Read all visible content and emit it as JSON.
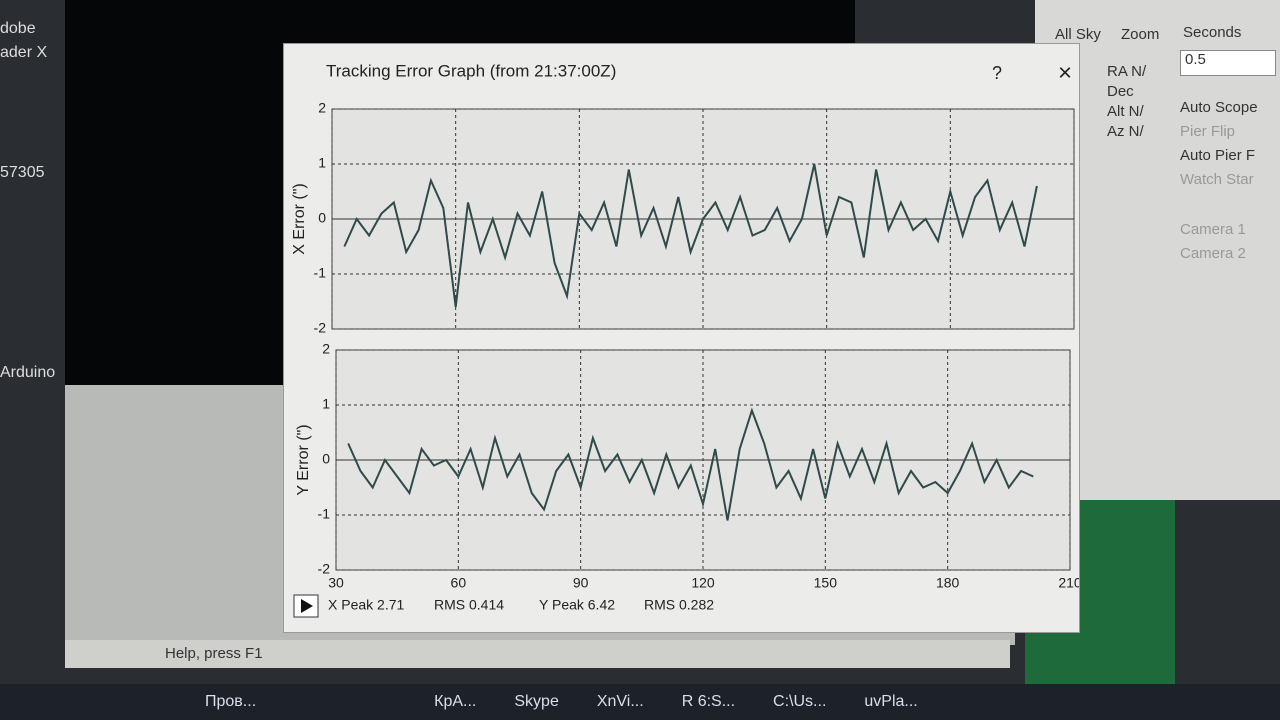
{
  "window": {
    "title": "Tracking Error Graph (from 21:37:00Z)",
    "help": "?",
    "close": "×"
  },
  "stats": {
    "x_peak": "X Peak 2.71",
    "x_rms": "RMS 0.414",
    "y_peak": "Y Peak 6.42",
    "y_rms": "RMS 0.282"
  },
  "chart_data": [
    {
      "type": "line",
      "ylabel": "X Error (\")",
      "x": [
        33,
        36,
        39,
        42,
        45,
        48,
        51,
        54,
        57,
        60,
        63,
        66,
        69,
        72,
        75,
        78,
        81,
        84,
        87,
        90,
        93,
        96,
        99,
        102,
        105,
        108,
        111,
        114,
        117,
        120,
        123,
        126,
        129,
        132,
        135,
        138,
        141,
        144,
        147,
        150,
        153,
        156,
        159,
        162,
        165,
        168,
        171,
        174,
        177,
        180,
        183,
        186,
        189,
        192,
        195,
        198,
        201
      ],
      "series": [
        {
          "color": "#2f4a4a",
          "values": [
            -0.5,
            0.0,
            -0.3,
            0.1,
            0.3,
            -0.6,
            -0.2,
            0.7,
            0.2,
            -1.6,
            0.3,
            -0.6,
            0.0,
            -0.7,
            0.1,
            -0.3,
            0.5,
            -0.8,
            -1.4,
            0.1,
            -0.2,
            0.3,
            -0.5,
            0.9,
            -0.3,
            0.2,
            -0.5,
            0.4,
            -0.6,
            0.0,
            0.3,
            -0.2,
            0.4,
            -0.3,
            -0.2,
            0.2,
            -0.4,
            0.0,
            1.0,
            -0.3,
            0.4,
            0.3,
            -0.7,
            0.9,
            -0.2,
            0.3,
            -0.2,
            0.0,
            -0.4,
            0.5,
            -0.3,
            0.4,
            0.7,
            -0.2,
            0.3,
            -0.5,
            0.6
          ]
        }
      ],
      "xlim": [
        30,
        210
      ],
      "ylim": [
        -2,
        2
      ],
      "xticks": [
        30,
        60,
        90,
        120,
        150,
        180,
        210
      ],
      "yticks": [
        -2,
        -1,
        0,
        1,
        2
      ],
      "grid": true
    },
    {
      "type": "line",
      "ylabel": "Y Error (\")",
      "x": [
        33,
        36,
        39,
        42,
        45,
        48,
        51,
        54,
        57,
        60,
        63,
        66,
        69,
        72,
        75,
        78,
        81,
        84,
        87,
        90,
        93,
        96,
        99,
        102,
        105,
        108,
        111,
        114,
        117,
        120,
        123,
        126,
        129,
        132,
        135,
        138,
        141,
        144,
        147,
        150,
        153,
        156,
        159,
        162,
        165,
        168,
        171,
        174,
        177,
        180,
        183,
        186,
        189,
        192,
        195,
        198,
        201
      ],
      "series": [
        {
          "color": "#2f4a4a",
          "values": [
            0.3,
            -0.2,
            -0.5,
            0.0,
            -0.3,
            -0.6,
            0.2,
            -0.1,
            0.0,
            -0.3,
            0.2,
            -0.5,
            0.4,
            -0.3,
            0.1,
            -0.6,
            -0.9,
            -0.2,
            0.1,
            -0.5,
            0.4,
            -0.2,
            0.1,
            -0.4,
            0.0,
            -0.6,
            0.1,
            -0.5,
            -0.1,
            -0.8,
            0.2,
            -1.1,
            0.2,
            0.9,
            0.3,
            -0.5,
            -0.2,
            -0.7,
            0.2,
            -0.7,
            0.3,
            -0.3,
            0.2,
            -0.4,
            0.3,
            -0.6,
            -0.2,
            -0.5,
            -0.4,
            -0.6,
            -0.2,
            0.3,
            -0.4,
            0.0,
            -0.5,
            -0.2,
            -0.3
          ]
        }
      ],
      "xlim": [
        30,
        210
      ],
      "ylim": [
        -2,
        2
      ],
      "xticks": [
        30,
        60,
        90,
        120,
        150,
        180,
        210
      ],
      "yticks": [
        -2,
        -1,
        0,
        1,
        2
      ],
      "grid": true
    }
  ],
  "right_panel": {
    "tabs": [
      "All Sky",
      "Zoom"
    ],
    "coords": [
      "RA  N/",
      "Dec",
      "Alt  N/",
      "Az  N/"
    ],
    "seconds_label": "Seconds",
    "seconds_value": "0.5",
    "options": [
      "Auto Scope",
      "Pier Flip",
      "Auto Pier F",
      "Watch Star",
      "Camera 1",
      "Camera 2"
    ]
  },
  "left_icons": [
    "dobe",
    "ader X",
    "57305",
    "Arduino"
  ],
  "status": "Help, press F1",
  "taskbar": [
    "Пров...",
    "КрА...",
    "Skype",
    "XnVi...",
    "R 6:S...",
    "C:\\Us...",
    "uvPla..."
  ]
}
